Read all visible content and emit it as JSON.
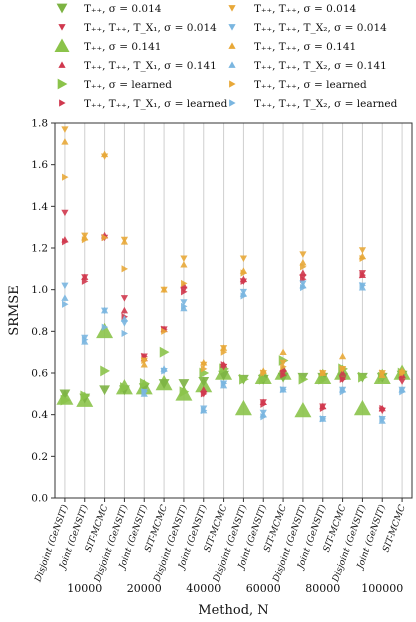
{
  "chart_data": {
    "type": "scatter",
    "xlabel": "Method, N",
    "ylabel": "SRMSE",
    "ylim": [
      0.0,
      1.8
    ],
    "yticks": [
      "0.0",
      "0.2",
      "0.4",
      "0.6",
      "0.8",
      "1.0",
      "1.2",
      "1.4",
      "1.6",
      "1.8"
    ],
    "groups": [
      "10000",
      "20000",
      "40000",
      "60000",
      "80000",
      "100000"
    ],
    "methods": [
      "Disjoint (GeNSIT)",
      "Joint (GeNSIT)",
      "SIT-MCMC"
    ],
    "grid": "vertical lines at each method",
    "legend_placement": "top, two columns",
    "series": [
      {
        "name": "T₊₊, σ = 0.014",
        "color": "#7cb342",
        "marker": "triangle-down",
        "size": "medium",
        "values": [
          [
            0.5,
            0.48,
            0.52
          ],
          [
            0.52,
            0.53,
            0.55
          ],
          [
            0.55,
            0.56,
            0.59
          ],
          [
            0.57,
            0.57,
            0.58
          ],
          [
            0.58,
            0.58,
            0.58
          ],
          [
            0.58,
            0.58,
            0.59
          ]
        ]
      },
      {
        "name": "T₊₊, T₊₊, T_X₁, σ = 0.014",
        "color": "#d0384e",
        "marker": "triangle-down",
        "size": "small",
        "values": [
          [
            1.37,
            1.06,
            1.25
          ],
          [
            0.96,
            0.68,
            0.81
          ],
          [
            1.0,
            0.5,
            0.63
          ],
          [
            1.04,
            0.46,
            0.6
          ],
          [
            1.06,
            0.44,
            0.57
          ],
          [
            1.08,
            0.42,
            0.56
          ]
        ]
      },
      {
        "name": "T₊₊, σ = 0.141",
        "color": "#8bc34a",
        "marker": "triangle-up",
        "size": "large",
        "values": [
          [
            0.48,
            0.47,
            0.8
          ],
          [
            0.53,
            0.53,
            0.55
          ],
          [
            0.5,
            0.54,
            0.6
          ],
          [
            0.43,
            0.58,
            0.6
          ],
          [
            0.42,
            0.58,
            0.6
          ],
          [
            0.43,
            0.58,
            0.6
          ]
        ]
      },
      {
        "name": "T₊₊, T₊₊, T_X₁, σ = 0.141",
        "color": "#d0384e",
        "marker": "triangle-up",
        "size": "small",
        "values": [
          [
            1.24,
            1.06,
            1.26
          ],
          [
            0.9,
            0.67,
            0.81
          ],
          [
            1.02,
            0.52,
            0.64
          ],
          [
            1.05,
            0.46,
            0.62
          ],
          [
            1.08,
            0.44,
            0.6
          ],
          [
            1.07,
            0.43,
            0.59
          ]
        ]
      },
      {
        "name": "T₊₊, σ = learned",
        "color": "#8bc34a",
        "marker": "triangle-right",
        "size": "medium",
        "values": [
          [
            0.47,
            0.49,
            0.61
          ],
          [
            0.53,
            0.55,
            0.7
          ],
          [
            0.51,
            0.6,
            0.62
          ],
          [
            0.57,
            0.57,
            0.66
          ],
          [
            0.57,
            0.57,
            0.62
          ],
          [
            0.58,
            0.58,
            0.6
          ]
        ]
      },
      {
        "name": "T₊₊, T₊₊, T_X₁, σ = learned",
        "color": "#d0384e",
        "marker": "triangle-right",
        "size": "small",
        "values": [
          [
            1.23,
            1.04,
            1.25
          ],
          [
            0.87,
            0.68,
            0.81
          ],
          [
            0.99,
            0.5,
            0.64
          ],
          [
            1.04,
            0.45,
            0.59
          ],
          [
            1.05,
            0.43,
            0.57
          ],
          [
            1.07,
            0.43,
            0.58
          ]
        ]
      },
      {
        "name": "T₊₊, T₊₊, σ = 0.014",
        "color": "#e8a838",
        "marker": "triangle-down",
        "size": "small",
        "values": [
          [
            1.77,
            1.26,
            1.64
          ],
          [
            1.24,
            0.66,
            1.0
          ],
          [
            1.15,
            0.64,
            0.72
          ],
          [
            1.15,
            0.6,
            0.65
          ],
          [
            1.17,
            0.6,
            0.62
          ],
          [
            1.19,
            0.6,
            0.6
          ]
        ]
      },
      {
        "name": "T₊₊, T₊₊, T_X₂, σ = 0.014",
        "color": "#7ab6e0",
        "marker": "triangle-down",
        "size": "small",
        "values": [
          [
            1.02,
            0.77,
            0.9
          ],
          [
            0.84,
            0.51,
            0.61
          ],
          [
            0.94,
            0.43,
            0.55
          ],
          [
            0.99,
            0.41,
            0.52
          ],
          [
            1.03,
            0.38,
            0.52
          ],
          [
            1.02,
            0.38,
            0.52
          ]
        ]
      },
      {
        "name": "T₊₊, T₊₊, σ = 0.141",
        "color": "#e8a838",
        "marker": "triangle-up",
        "size": "small",
        "values": [
          [
            1.71,
            1.25,
            1.65
          ],
          [
            1.23,
            0.64,
            1.0
          ],
          [
            1.12,
            0.65,
            0.72
          ],
          [
            1.09,
            0.61,
            0.7
          ],
          [
            1.13,
            0.6,
            0.68
          ],
          [
            1.16,
            0.59,
            0.61
          ]
        ]
      },
      {
        "name": "T₊₊, T₊₊, T_X₂, σ = 0.141",
        "color": "#7ab6e0",
        "marker": "triangle-up",
        "size": "small",
        "values": [
          [
            0.96,
            0.75,
            0.9
          ],
          [
            0.86,
            0.5,
            0.62
          ],
          [
            0.91,
            0.42,
            0.54
          ],
          [
            0.98,
            0.4,
            0.52
          ],
          [
            1.02,
            0.38,
            0.52
          ],
          [
            1.01,
            0.37,
            0.52
          ]
        ]
      },
      {
        "name": "T₊₊, T₊₊, σ = learned",
        "color": "#e8a838",
        "marker": "triangle-right",
        "size": "small",
        "values": [
          [
            1.54,
            1.24,
            1.25
          ],
          [
            1.1,
            0.66,
            0.8
          ],
          [
            1.03,
            0.62,
            0.7
          ],
          [
            1.08,
            0.6,
            0.63
          ],
          [
            1.11,
            0.6,
            0.62
          ],
          [
            1.15,
            0.6,
            0.6
          ]
        ]
      },
      {
        "name": "T₊₊, T₊₊, T_X₂, σ = learned",
        "color": "#7ab6e0",
        "marker": "triangle-right",
        "size": "small",
        "values": [
          [
            0.93,
            0.76,
            0.82
          ],
          [
            0.79,
            0.51,
            0.61
          ],
          [
            0.92,
            0.42,
            0.55
          ],
          [
            0.97,
            0.39,
            0.52
          ],
          [
            1.01,
            0.38,
            0.51
          ],
          [
            1.02,
            0.38,
            0.51
          ]
        ]
      }
    ]
  }
}
